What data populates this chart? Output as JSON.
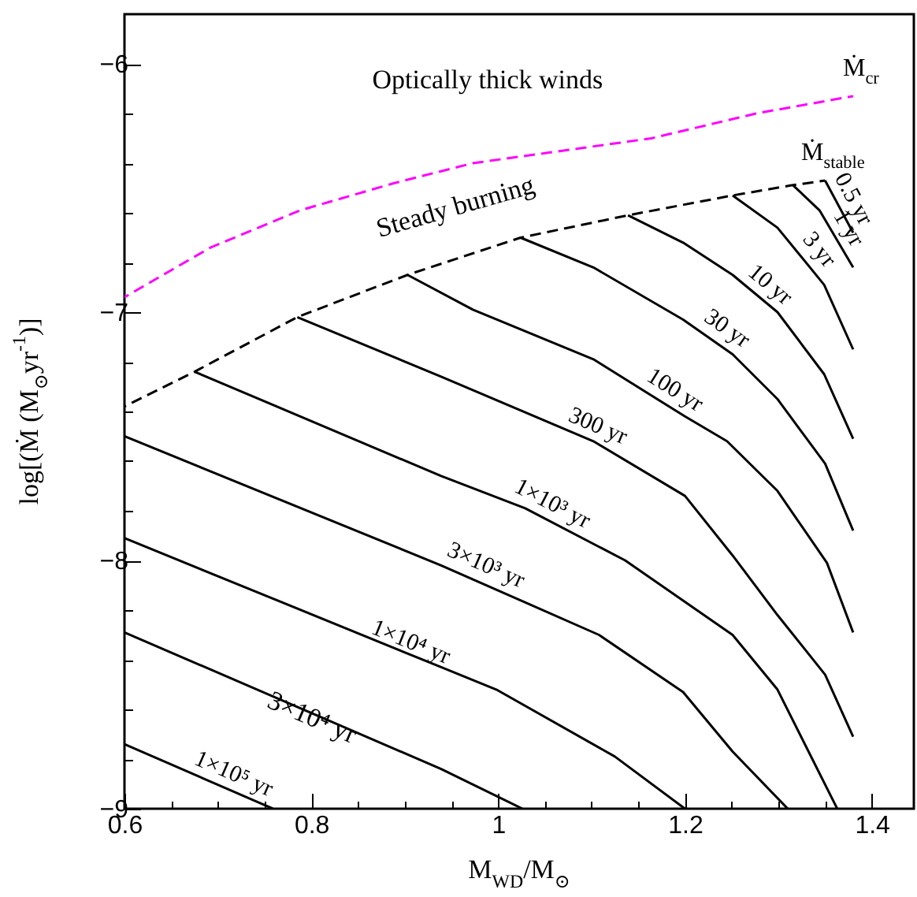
{
  "chart_data": {
    "type": "line",
    "xlabel": "M$_{WD}$/M$_{⊙}$",
    "ylabel": "log[(Ṁ (M$_{⊙}$yr$^{-1}$)]",
    "xlim": [
      0.6,
      1.445
    ],
    "ylim": [
      -9,
      -5.8
    ],
    "xticks": [
      0.6,
      {
        "value": 0.65,
        "label": null
      },
      {
        "value": 0.7,
        "label": null
      },
      {
        "value": 0.75,
        "label": null
      },
      0.8,
      {
        "value": 0.85,
        "label": null
      },
      {
        "value": 0.9,
        "label": null
      },
      {
        "value": 0.95,
        "label": null
      },
      1,
      {
        "value": 1.05,
        "label": null
      },
      {
        "value": 1.1,
        "label": null
      },
      {
        "value": 1.15,
        "label": null
      },
      1.2,
      {
        "value": 1.25,
        "label": null
      },
      {
        "value": 1.3,
        "label": null
      },
      {
        "value": 1.35,
        "label": null
      },
      1.4
    ],
    "yticks": [
      -9,
      {
        "value": -8.8,
        "label": null
      },
      {
        "value": -8.6,
        "label": null
      },
      {
        "value": -8.4,
        "label": null
      },
      {
        "value": -8.2,
        "label": null
      },
      -8,
      {
        "value": -7.8,
        "label": null
      },
      {
        "value": -7.6,
        "label": null
      },
      {
        "value": -7.4,
        "label": null
      },
      {
        "value": -7.2,
        "label": null
      },
      -7,
      {
        "value": -6.8,
        "label": null
      },
      {
        "value": -6.6,
        "label": null
      },
      {
        "value": -6.4,
        "label": null
      },
      {
        "value": -6.2,
        "label": null
      },
      -6
    ],
    "grid": false,
    "marker": "none",
    "series": [
      {
        "name": "Ṁ$_{cr}$",
        "color": "#ff00ff",
        "line_style": "dashed",
        "x": [
          0.6,
          0.692,
          0.788,
          0.889,
          0.973,
          1.164,
          1.276,
          1.38
        ],
        "values": [
          -6.94,
          -6.74,
          -6.59,
          -6.48,
          -6.4,
          -6.3,
          -6.2,
          -6.13
        ]
      },
      {
        "name": "Ṁ$_{stable}$",
        "color": "#000000",
        "line_style": "dashed",
        "x": [
          0.6,
          0.675,
          0.785,
          0.903,
          1.024,
          1.139,
          1.251,
          1.313,
          1.35
        ],
        "values": [
          -7.38,
          -7.24,
          -7.02,
          -6.85,
          -6.7,
          -6.61,
          -6.53,
          -6.49,
          -6.47
        ]
      },
      {
        "color": "#000000",
        "line_style": "solid",
        "x": [
          1.35,
          1.38
        ],
        "values": [
          -6.47,
          -6.68
        ]
      },
      {
        "color": "#000000",
        "line_style": "solid",
        "x": [
          1.316,
          1.344,
          1.38
        ],
        "values": [
          -6.49,
          -6.59,
          -6.82
        ]
      },
      {
        "color": "#000000",
        "line_style": "solid",
        "x": [
          1.251,
          1.299,
          1.349,
          1.38
        ],
        "values": [
          -6.53,
          -6.66,
          -6.89,
          -7.15
        ]
      },
      {
        "color": "#000000",
        "line_style": "solid",
        "x": [
          1.139,
          1.198,
          1.251,
          1.299,
          1.349,
          1.38
        ],
        "values": [
          -6.61,
          -6.72,
          -6.85,
          -7.0,
          -7.25,
          -7.51
        ]
      },
      {
        "color": "#000000",
        "line_style": "solid",
        "x": [
          1.024,
          1.102,
          1.198,
          1.251,
          1.299,
          1.35,
          1.38
        ],
        "values": [
          -6.7,
          -6.82,
          -7.03,
          -7.17,
          -7.35,
          -7.61,
          -7.88
        ]
      },
      {
        "color": "#000000",
        "line_style": "solid",
        "x": [
          0.903,
          0.973,
          1.102,
          1.2,
          1.245,
          1.299,
          1.352,
          1.38
        ],
        "values": [
          -6.85,
          -6.99,
          -7.19,
          -7.42,
          -7.52,
          -7.72,
          -8.01,
          -8.29
        ]
      },
      {
        "color": "#000000",
        "line_style": "solid",
        "x": [
          0.785,
          0.939,
          1.102,
          1.2,
          1.251,
          1.299,
          1.35,
          1.38
        ],
        "values": [
          -7.02,
          -7.26,
          -7.52,
          -7.74,
          -7.98,
          -8.22,
          -8.46,
          -8.71
        ]
      },
      {
        "color": "#000000",
        "line_style": "solid",
        "x": [
          0.675,
          0.939,
          1.029,
          1.136,
          1.251,
          1.299,
          1.363
        ],
        "values": [
          -7.24,
          -7.66,
          -7.79,
          -8.0,
          -8.3,
          -8.52,
          -9.0
        ]
      },
      {
        "color": "#000000",
        "line_style": "solid",
        "x": [
          0.6,
          0.939,
          1.108,
          1.198,
          1.251,
          1.31
        ],
        "values": [
          -7.5,
          -8.02,
          -8.3,
          -8.53,
          -8.77,
          -9.0
        ]
      },
      {
        "color": "#000000",
        "line_style": "solid",
        "x": [
          0.6,
          0.939,
          0.998,
          1.125,
          1.2
        ],
        "values": [
          -7.91,
          -8.43,
          -8.52,
          -8.79,
          -9.0
        ]
      },
      {
        "color": "#000000",
        "line_style": "solid",
        "x": [
          0.6,
          0.939,
          1.026
        ],
        "values": [
          -8.29,
          -8.84,
          -9.0
        ]
      },
      {
        "color": "#000000",
        "line_style": "solid",
        "x": [
          0.6,
          0.759
        ],
        "values": [
          -8.74,
          -9.0
        ]
      }
    ],
    "annotations": [
      "Optically thick winds",
      "Steady burning",
      {
        "text": "0.5 yr",
        "x": 1.365,
        "y": -6.575
      },
      {
        "text": "1 yr",
        "x": 1.36,
        "y": -6.695
      },
      {
        "text": "3 yr",
        "x": 1.33,
        "y": -6.79
      },
      {
        "text": "10 yr",
        "x": 1.28,
        "y": -6.94
      },
      {
        "text": "30 yr",
        "x": 1.235,
        "y": -7.12
      },
      {
        "text": "100 yr",
        "x": 1.18,
        "y": -7.37
      },
      {
        "text": "300 yr",
        "x": 1.1,
        "y": -7.52
      },
      {
        "text": "1×10³ yr",
        "x": 1.05,
        "y": -7.83
      },
      {
        "text": "3×10³ yr",
        "x": 0.98,
        "y": -8.08
      },
      {
        "text": "1×10⁴ yr",
        "x": 0.9,
        "y": -8.39
      },
      {
        "text": "3×10⁴ yr",
        "x": 0.8,
        "y": -8.64
      },
      {
        "text": "1×10⁵ yr",
        "x": 0.71,
        "y": -8.92
      }
    ]
  }
}
